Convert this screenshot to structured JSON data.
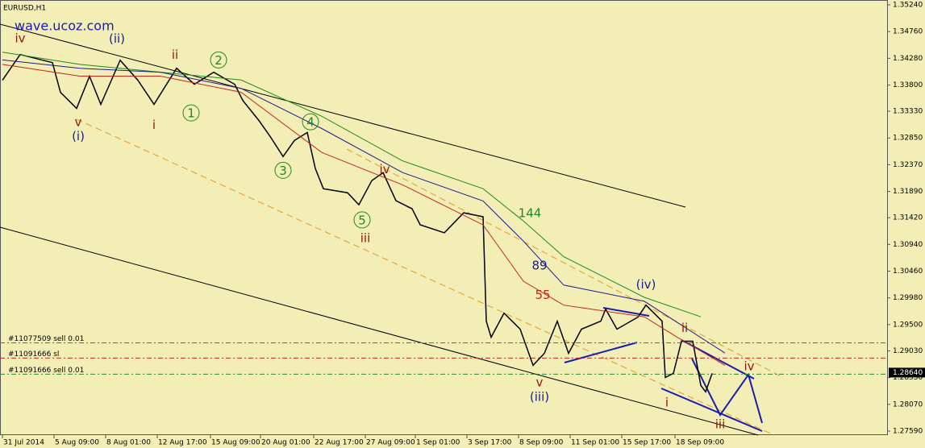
{
  "chart_data": {
    "type": "line",
    "title": "EURUSD,H1",
    "watermark": "wave.ucoz.com",
    "xlim": [
      0,
      549
    ],
    "ylim": [
      1.27518,
      1.35326
    ],
    "xticks": [
      {
        "value": 0,
        "label": "31 Jul 2014"
      },
      {
        "value": 32,
        "label": "5 Aug 09:00"
      },
      {
        "value": 64,
        "label": "8 Aug 01:00"
      },
      {
        "value": 96,
        "label": "12 Aug 17:00"
      },
      {
        "value": 129,
        "label": "15 Aug 09:00"
      },
      {
        "value": 160,
        "label": "20 Aug 01:00"
      },
      {
        "value": 193,
        "label": "22 Aug 17:00"
      },
      {
        "value": 225,
        "label": "27 Aug 09:00"
      },
      {
        "value": 256,
        "label": "1 Sep 01:00"
      },
      {
        "value": 288,
        "label": "3 Sep 17:00"
      },
      {
        "value": 320,
        "label": "8 Sep 09:00"
      },
      {
        "value": 352,
        "label": "11 Sep 01:00"
      },
      {
        "value": 384,
        "label": "15 Sep 17:00"
      },
      {
        "value": 417,
        "label": "18 Sep 09:00"
      }
    ],
    "yticks": [
      {
        "value": 1.3524,
        "label": "1.35240"
      },
      {
        "value": 1.3476,
        "label": "1.34760"
      },
      {
        "value": 1.3428,
        "label": "1.34280"
      },
      {
        "value": 1.338,
        "label": "1.33800"
      },
      {
        "value": 1.3333,
        "label": "1.33330"
      },
      {
        "value": 1.3285,
        "label": "1.32850"
      },
      {
        "value": 1.3237,
        "label": "1.32370"
      },
      {
        "value": 1.3189,
        "label": "1.31890"
      },
      {
        "value": 1.3142,
        "label": "1.31420"
      },
      {
        "value": 1.3094,
        "label": "1.30940"
      },
      {
        "value": 1.3046,
        "label": "1.30460"
      },
      {
        "value": 1.2998,
        "label": "1.29980"
      },
      {
        "value": 1.295,
        "label": "1.29500"
      },
      {
        "value": 1.2903,
        "label": "1.29030"
      },
      {
        "value": 1.2855,
        "label": "1.28550"
      },
      {
        "value": 1.2807,
        "label": "1.28070"
      },
      {
        "value": 1.2759,
        "label": "1.27590"
      }
    ],
    "current_price": {
      "value": 1.2864,
      "label": "1.28640"
    },
    "series": [
      {
        "name": "EURUSD",
        "color": "#000000",
        "x": [
          0,
          11,
          31,
          36,
          46,
          54,
          61,
          73,
          84,
          94,
          108,
          119,
          131,
          144,
          149,
          159,
          166,
          174,
          181,
          189,
          194,
          199,
          214,
          221,
          229,
          236,
          244,
          254,
          259,
          274,
          286,
          298,
          300,
          303,
          311,
          321,
          329,
          336,
          344,
          351,
          359,
          371,
          374,
          381,
          394,
          399,
          409,
          411,
          416,
          421,
          428,
          433,
          436,
          440
        ],
        "values": [
          1.33886,
          1.34347,
          1.34203,
          1.33669,
          1.33381,
          1.33958,
          1.33453,
          1.34246,
          1.33886,
          1.33453,
          1.34102,
          1.33813,
          1.3403,
          1.33813,
          1.33525,
          1.33165,
          1.32877,
          1.32517,
          1.32805,
          1.32949,
          1.32301,
          1.3194,
          1.31868,
          1.31652,
          1.32084,
          1.32228,
          1.31724,
          1.3158,
          1.31292,
          1.31148,
          1.31508,
          1.31436,
          1.29563,
          1.29275,
          1.29707,
          1.29419,
          1.2877,
          1.28986,
          1.29563,
          1.28986,
          1.29419,
          1.29563,
          1.29779,
          1.29419,
          1.29635,
          1.29851,
          1.29563,
          1.28554,
          1.28626,
          1.29203,
          1.29203,
          1.2841,
          1.28295,
          1.28626
        ]
      },
      {
        "name": "144",
        "color": "#1f8a1f",
        "x": [
          0,
          48,
          98,
          148,
          198,
          248,
          298,
          323,
          348,
          398,
          433
        ],
        "values": [
          1.3439,
          1.3417,
          1.3403,
          1.3389,
          1.3324,
          1.3244,
          1.3194,
          1.3136,
          1.3072,
          1.2999,
          1.2964
        ]
      },
      {
        "name": "89",
        "color": "#1c1c8c",
        "x": [
          0,
          48,
          98,
          148,
          198,
          248,
          298,
          323,
          348,
          398,
          413,
          448
        ],
        "values": [
          1.3425,
          1.341,
          1.3403,
          1.3374,
          1.3302,
          1.3223,
          1.3172,
          1.31,
          1.3021,
          1.2992,
          1.2964,
          1.2899
        ]
      },
      {
        "name": "55",
        "color": "#c0281e",
        "x": [
          0,
          48,
          98,
          148,
          198,
          248,
          298,
          323,
          348,
          398,
          418,
          448
        ],
        "values": [
          1.3417,
          1.3396,
          1.3396,
          1.3367,
          1.3259,
          1.3201,
          1.3129,
          1.3028,
          1.2985,
          1.2964,
          1.2928,
          1.2877
        ]
      }
    ],
    "orders": [
      {
        "label": "#11077509 sell 0.01",
        "price": 1.29173,
        "color": "#2e8b2e"
      },
      {
        "label": "#11091666 sl",
        "price": 1.289,
        "color": "#c0281e"
      },
      {
        "label": "#11091666 sell 0.01",
        "price": 1.28612,
        "color": "#2e8b2e"
      }
    ],
    "annotations": [
      {
        "text": "iv",
        "x": 11,
        "price": 1.3465,
        "color": "#8b1a10"
      },
      {
        "text": "(ii)",
        "x": 71,
        "price": 1.3464,
        "color": "#1c1c8c"
      },
      {
        "text": "ii",
        "x": 107,
        "price": 1.3435,
        "color": "#8b1a10"
      },
      {
        "text": "2",
        "x": 134,
        "price": 1.3425,
        "color": "#1f8a1f",
        "circled": true
      },
      {
        "text": "1",
        "x": 117,
        "price": 1.333,
        "color": "#1f8a1f",
        "circled": true
      },
      {
        "text": "v",
        "x": 47,
        "price": 1.3314,
        "color": "#8b1a10"
      },
      {
        "text": "(i)",
        "x": 47,
        "price": 1.3289,
        "color": "#1c1c8c"
      },
      {
        "text": "i",
        "x": 94,
        "price": 1.3309,
        "color": "#8b1a10"
      },
      {
        "text": "4",
        "x": 191,
        "price": 1.3314,
        "color": "#1f8a1f",
        "circled": true
      },
      {
        "text": "3",
        "x": 174,
        "price": 1.3227,
        "color": "#1f8a1f",
        "circled": true
      },
      {
        "text": "iv",
        "x": 237,
        "price": 1.323,
        "color": "#8b1a10"
      },
      {
        "text": "5",
        "x": 223,
        "price": 1.3138,
        "color": "#1f8a1f",
        "circled": true
      },
      {
        "text": "iii",
        "x": 225,
        "price": 1.3106,
        "color": "#8b1a10"
      },
      {
        "text": "144",
        "x": 327,
        "price": 1.3151,
        "color": "#1f8a1f"
      },
      {
        "text": "89",
        "x": 333,
        "price": 1.3057,
        "color": "#1c1c8c"
      },
      {
        "text": "55",
        "x": 335,
        "price": 1.3004,
        "color": "#c0281e"
      },
      {
        "text": "(iv)",
        "x": 399,
        "price": 1.3023,
        "color": "#1c1c8c"
      },
      {
        "text": "ii",
        "x": 423,
        "price": 1.2945,
        "color": "#8b1a10"
      },
      {
        "text": "iv",
        "x": 463,
        "price": 1.2876,
        "color": "#8b1a10"
      },
      {
        "text": "v",
        "x": 333,
        "price": 1.2847,
        "color": "#8b1a10"
      },
      {
        "text": "(iii)",
        "x": 333,
        "price": 1.2821,
        "color": "#1c1c8c"
      },
      {
        "text": "i",
        "x": 412,
        "price": 1.2811,
        "color": "#8b1a10"
      },
      {
        "text": "iii",
        "x": 445,
        "price": 1.2772,
        "color": "#8b1a10"
      }
    ]
  }
}
